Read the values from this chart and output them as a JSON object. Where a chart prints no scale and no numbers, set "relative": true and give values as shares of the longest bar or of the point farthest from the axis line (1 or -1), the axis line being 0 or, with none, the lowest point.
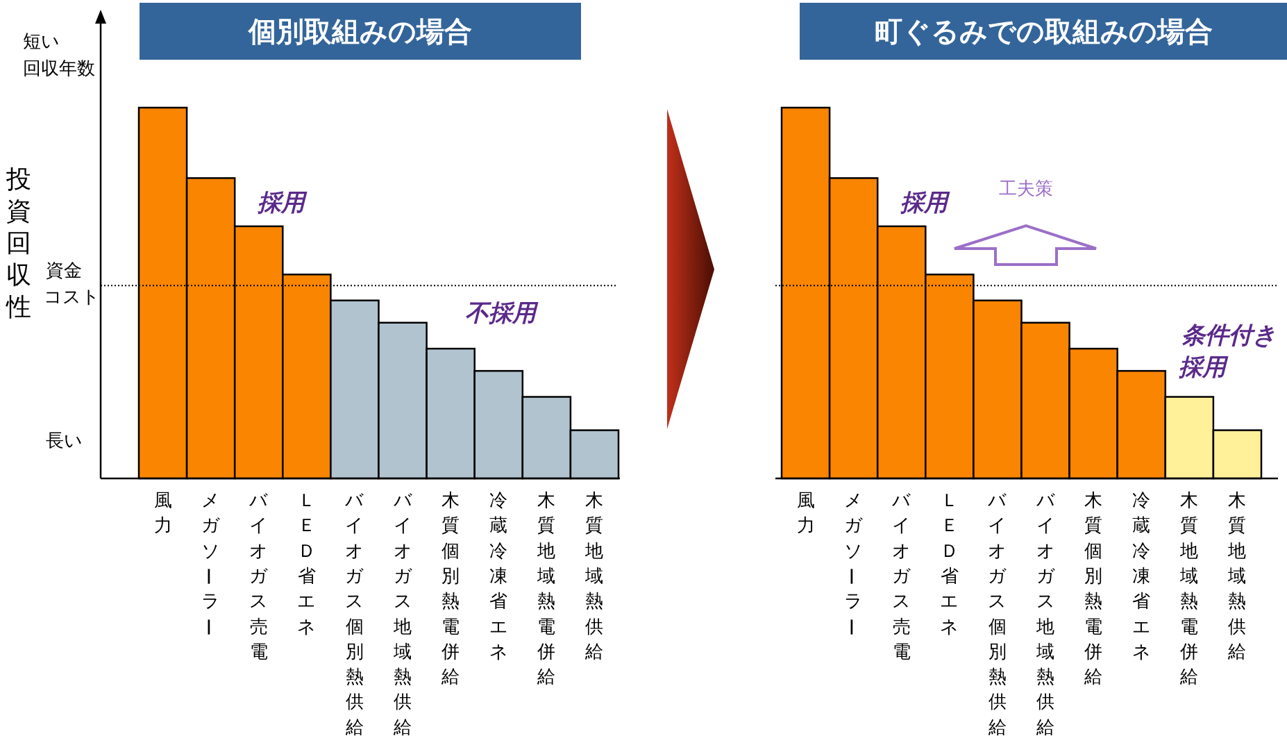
{
  "chart_data": [
    {
      "type": "bar",
      "title": "個別取組みの場合",
      "ylabel": "投資回収性",
      "relative": true,
      "categories": [
        "風力",
        "メガソーラー",
        "バイオガス売電",
        "ＬＥＤ省エネ",
        "バイオガス個別熱供給",
        "バイオガス地域熱供給",
        "木質個別熱電併給",
        "冷蔵冷凍省エネ",
        "木質地域熱電併給",
        "木質地域熱供給"
      ],
      "values": [
        1,
        0.81,
        0.68,
        0.55,
        0.48,
        0.42,
        0.35,
        0.29,
        0.22,
        0.13
      ],
      "colors": [
        "#f98500",
        "#f98500",
        "#f98500",
        "#f98500",
        "#b1c3cf",
        "#b1c3cf",
        "#b1c3cf",
        "#b1c3cf",
        "#b1c3cf",
        "#b1c3cf"
      ],
      "ref_lines": [
        {
          "axis": "y",
          "value": 0.52,
          "line_style": "dotted",
          "color": "#000000"
        }
      ],
      "annotations": [
        "短い",
        "回収年数",
        "長い",
        "資金",
        "コスト",
        "採用",
        "不採用"
      ]
    },
    {
      "type": "bar",
      "title": "町ぐるみでの取組みの場合",
      "relative": true,
      "categories": [
        "風力",
        "メガソーラー",
        "バイオガス売電",
        "ＬＥＤ省エネ",
        "バイオガス個別熱供給",
        "バイオガス地域熱供給",
        "木質個別熱電併給",
        "冷蔵冷凍省エネ",
        "木質地域熱電併給",
        "木質地域熱供給"
      ],
      "values": [
        1,
        0.81,
        0.68,
        0.55,
        0.48,
        0.42,
        0.35,
        0.29,
        0.22,
        0.13
      ],
      "colors": [
        "#f98500",
        "#f98500",
        "#f98500",
        "#f98500",
        "#f98500",
        "#f98500",
        "#f98500",
        "#f98500",
        "#fff09a",
        "#fff09a"
      ],
      "ref_lines": [
        {
          "axis": "y",
          "value": 0.52,
          "line_style": "dotted",
          "color": "#000000"
        }
      ],
      "annotations": [
        "採用",
        "工夫策",
        "条件付き",
        "採用"
      ]
    }
  ]
}
